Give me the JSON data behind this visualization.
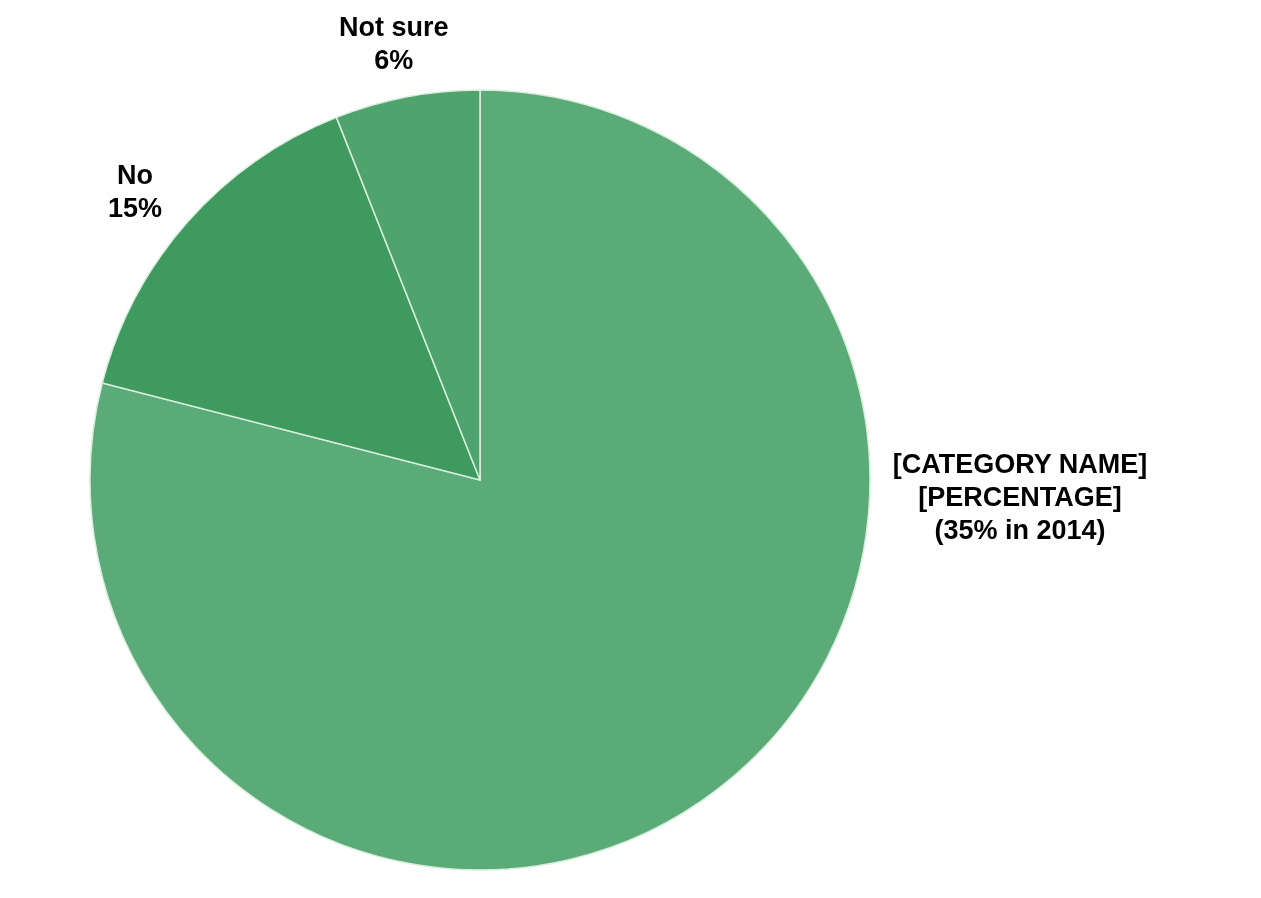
{
  "chart_data": {
    "type": "pie",
    "categories": [
      "[CATEGORY NAME]",
      "No",
      "Not sure"
    ],
    "values": [
      79,
      15,
      6
    ],
    "colors": [
      "#5aab78",
      "#3e9a5e",
      "#4fa36c"
    ],
    "value_labels": [
      "[PERCENTAGE]",
      "15%",
      "6%"
    ],
    "annotations": [
      "(35% in 2014)"
    ]
  }
}
